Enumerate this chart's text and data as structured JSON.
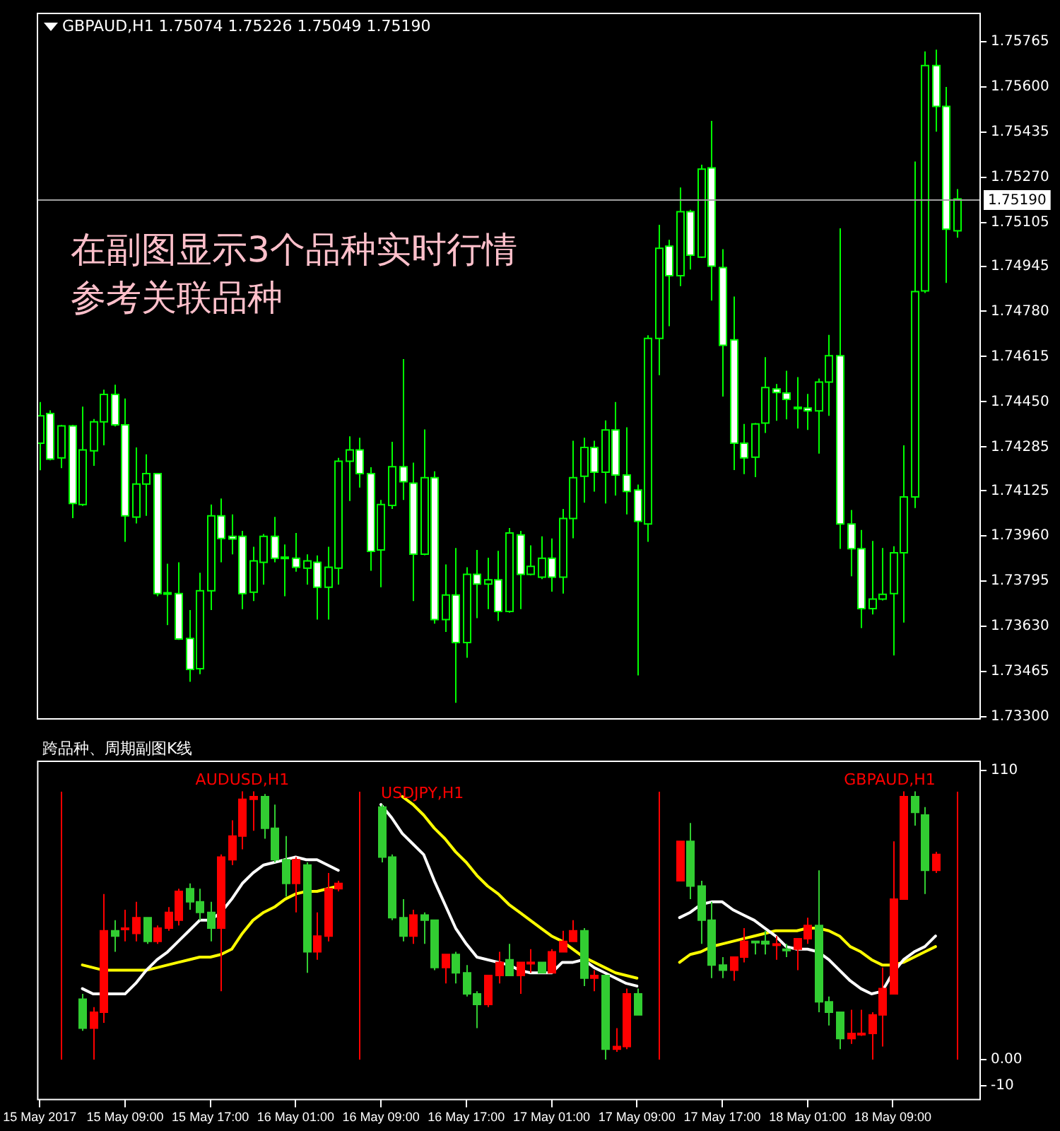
{
  "chart_data": [
    {
      "type": "candlestick",
      "title": "GBPAUD,H1  1.75074 1.75226 1.75049 1.75190",
      "annotations": [
        "在副图显示3个品种实时行情",
        "参考关联品种"
      ],
      "x": [
        "2017-05-15T01:00",
        "2017-05-15T02:00",
        "2017-05-15T03:00",
        "2017-05-15T04:00",
        "2017-05-15T05:00",
        "2017-05-15T06:00",
        "2017-05-15T07:00",
        "2017-05-15T08:00",
        "2017-05-15T09:00",
        "2017-05-15T10:00",
        "2017-05-15T11:00",
        "2017-05-15T12:00",
        "2017-05-15T13:00",
        "2017-05-15T14:00",
        "2017-05-15T15:00",
        "2017-05-15T16:00",
        "2017-05-15T17:00",
        "2017-05-15T18:00",
        "2017-05-15T19:00",
        "2017-05-15T20:00",
        "2017-05-15T21:00",
        "2017-05-15T22:00",
        "2017-05-15T23:00",
        "2017-05-16T00:00",
        "2017-05-16T01:00",
        "2017-05-16T02:00",
        "2017-05-16T03:00",
        "2017-05-16T04:00",
        "2017-05-16T05:00",
        "2017-05-16T06:00",
        "2017-05-16T07:00",
        "2017-05-16T08:00",
        "2017-05-16T09:00",
        "2017-05-16T10:00",
        "2017-05-16T11:00",
        "2017-05-16T12:00",
        "2017-05-16T13:00",
        "2017-05-16T14:00",
        "2017-05-16T15:00",
        "2017-05-16T16:00",
        "2017-05-16T17:00",
        "2017-05-16T18:00",
        "2017-05-16T19:00",
        "2017-05-16T20:00",
        "2017-05-16T21:00",
        "2017-05-16T22:00",
        "2017-05-16T23:00",
        "2017-05-17T00:00",
        "2017-05-17T01:00",
        "2017-05-17T02:00",
        "2017-05-17T03:00",
        "2017-05-17T04:00",
        "2017-05-17T05:00",
        "2017-05-17T06:00",
        "2017-05-17T07:00",
        "2017-05-17T08:00",
        "2017-05-17T09:00",
        "2017-05-17T10:00",
        "2017-05-17T11:00",
        "2017-05-17T12:00",
        "2017-05-17T13:00",
        "2017-05-17T14:00",
        "2017-05-17T15:00",
        "2017-05-17T16:00",
        "2017-05-17T17:00",
        "2017-05-17T18:00",
        "2017-05-17T19:00",
        "2017-05-17T20:00",
        "2017-05-17T21:00",
        "2017-05-17T22:00",
        "2017-05-17T23:00",
        "2017-05-18T00:00",
        "2017-05-18T01:00",
        "2017-05-18T02:00",
        "2017-05-18T03:00",
        "2017-05-18T04:00",
        "2017-05-18T05:00",
        "2017-05-18T06:00",
        "2017-05-18T07:00",
        "2017-05-18T08:00",
        "2017-05-18T09:00",
        "2017-05-18T10:00",
        "2017-05-18T11:00",
        "2017-05-18T12:00",
        "2017-05-18T13:00",
        "2017-05-18T14:00",
        "2017-05-18T15:00"
      ],
      "ohlc": [
        [
          1.74299,
          1.74449,
          1.742,
          1.74399
        ],
        [
          1.74407,
          1.74419,
          1.74236,
          1.74241
        ],
        [
          1.74245,
          1.74366,
          1.74208,
          1.74362
        ],
        [
          1.74362,
          1.74366,
          1.74025,
          1.74079
        ],
        [
          1.74075,
          1.74432,
          1.7407,
          1.74274
        ],
        [
          1.74271,
          1.74387,
          1.74216,
          1.74377
        ],
        [
          1.74377,
          1.74494,
          1.74291,
          1.74477
        ],
        [
          1.74477,
          1.74512,
          1.7436,
          1.74366
        ],
        [
          1.74366,
          1.74462,
          1.73939,
          1.74034
        ],
        [
          1.74029,
          1.74283,
          1.74006,
          1.7415
        ],
        [
          1.7415,
          1.74258,
          1.74034,
          1.74188
        ],
        [
          1.74188,
          1.7419,
          1.7374,
          1.7375
        ],
        [
          1.73753,
          1.73859,
          1.73635,
          1.73753
        ],
        [
          1.7375,
          1.73864,
          1.73581,
          1.73584
        ],
        [
          1.73586,
          1.7369,
          1.73428,
          1.73473
        ],
        [
          1.73476,
          1.73826,
          1.73456,
          1.7376
        ],
        [
          1.7376,
          1.74075,
          1.7369,
          1.74034
        ],
        [
          1.74034,
          1.74097,
          1.73864,
          1.73951
        ],
        [
          1.73959,
          1.74039,
          1.73893,
          1.73949
        ],
        [
          1.73959,
          1.73979,
          1.73693,
          1.7375
        ],
        [
          1.73755,
          1.73921,
          1.73723,
          1.73869
        ],
        [
          1.73864,
          1.73967,
          1.73783,
          1.73959
        ],
        [
          1.73959,
          1.7403,
          1.73864,
          1.73879
        ],
        [
          1.73883,
          1.73929,
          1.7374,
          1.73883
        ],
        [
          1.73879,
          1.73971,
          1.7383,
          1.73846
        ],
        [
          1.73843,
          1.73893,
          1.73783,
          1.73869
        ],
        [
          1.73864,
          1.73889,
          1.73655,
          1.73773
        ],
        [
          1.73773,
          1.73921,
          1.73655,
          1.73846
        ],
        [
          1.73843,
          1.74245,
          1.73783,
          1.74233
        ],
        [
          1.74233,
          1.74324,
          1.74088,
          1.74274
        ],
        [
          1.74274,
          1.74319,
          1.74137,
          1.74188
        ],
        [
          1.74188,
          1.74211,
          1.73833,
          1.73904
        ],
        [
          1.73909,
          1.74092,
          1.73773,
          1.74075
        ],
        [
          1.74072,
          1.74304,
          1.74059,
          1.74213
        ],
        [
          1.74213,
          1.74606,
          1.74092,
          1.74158
        ],
        [
          1.74153,
          1.74228,
          1.73723,
          1.73894
        ],
        [
          1.73894,
          1.74349,
          1.7389,
          1.74173
        ],
        [
          1.74173,
          1.74196,
          1.7364,
          1.73655
        ],
        [
          1.73655,
          1.73856,
          1.7361,
          1.73745
        ],
        [
          1.73745,
          1.73916,
          1.73351,
          1.73571
        ],
        [
          1.73571,
          1.73846,
          1.73516,
          1.7382
        ],
        [
          1.7382,
          1.73909,
          1.7366,
          1.73785
        ],
        [
          1.73785,
          1.73881,
          1.73693,
          1.738
        ],
        [
          1.738,
          1.73906,
          1.7365,
          1.73685
        ],
        [
          1.73685,
          1.73989,
          1.7368,
          1.73971
        ],
        [
          1.73964,
          1.73979,
          1.73693,
          1.7382
        ],
        [
          1.7382,
          1.73926,
          1.73816,
          1.73849
        ],
        [
          1.7381,
          1.73959,
          1.73803,
          1.73879
        ],
        [
          1.73879,
          1.73951,
          1.73757,
          1.7381
        ],
        [
          1.7381,
          1.74059,
          1.7375,
          1.74024
        ],
        [
          1.74024,
          1.74308,
          1.73952,
          1.74173
        ],
        [
          1.74178,
          1.74319,
          1.74082,
          1.74283
        ],
        [
          1.74283,
          1.74308,
          1.74122,
          1.74193
        ],
        [
          1.74193,
          1.74382,
          1.74079,
          1.74347
        ],
        [
          1.74347,
          1.74449,
          1.74108,
          1.74183
        ],
        [
          1.74183,
          1.74357,
          1.74039,
          1.74123
        ],
        [
          1.74128,
          1.74148,
          1.73451,
          1.74014
        ],
        [
          1.74004,
          1.74693,
          1.73939,
          1.74681
        ],
        [
          1.74681,
          1.75096,
          1.74547,
          1.7501
        ],
        [
          1.75018,
          1.75041,
          1.74726,
          1.7491
        ],
        [
          1.7491,
          1.75232,
          1.74872,
          1.75144
        ],
        [
          1.75144,
          1.75151,
          1.74933,
          1.74985
        ],
        [
          1.74978,
          1.75315,
          1.74975,
          1.75299
        ],
        [
          1.75304,
          1.75475,
          1.74819,
          1.74945
        ],
        [
          1.7494,
          1.75007,
          1.74469,
          1.74656
        ],
        [
          1.74676,
          1.74834,
          1.74201,
          1.74299
        ],
        [
          1.74299,
          1.74369,
          1.74186,
          1.74245
        ],
        [
          1.74248,
          1.74372,
          1.74175,
          1.74369
        ],
        [
          1.74372,
          1.74613,
          1.74336,
          1.74502
        ],
        [
          1.74497,
          1.74515,
          1.74381,
          1.74484
        ],
        [
          1.74482,
          1.74563,
          1.74386,
          1.74459
        ],
        [
          1.7443,
          1.7454,
          1.74352,
          1.7443
        ],
        [
          1.74427,
          1.74479,
          1.74347,
          1.74417
        ],
        [
          1.74417,
          1.74535,
          1.74261,
          1.74522
        ],
        [
          1.74522,
          1.74694,
          1.74399,
          1.74618
        ],
        [
          1.74618,
          1.75083,
          1.73913,
          1.74004
        ],
        [
          1.74004,
          1.74055,
          1.73813,
          1.73914
        ],
        [
          1.73914,
          1.73982,
          1.73624,
          1.73695
        ],
        [
          1.73695,
          1.73942,
          1.73674,
          1.7373
        ],
        [
          1.7373,
          1.73916,
          1.73725,
          1.73747
        ],
        [
          1.7375,
          1.73923,
          1.73524,
          1.73899
        ],
        [
          1.73899,
          1.74291,
          1.73644,
          1.74103
        ],
        [
          1.74103,
          1.75327,
          1.74062,
          1.74852
        ],
        [
          1.74855,
          1.75729,
          1.74847,
          1.75677
        ],
        [
          1.75677,
          1.75735,
          1.75436,
          1.75528
        ],
        [
          1.75528,
          1.75599,
          1.74884,
          1.7508
        ],
        [
          1.75074,
          1.75226,
          1.75049,
          1.7519
        ]
      ],
      "color": "#00ff00",
      "colors": [
        "#000000",
        "#ffffff",
        "#000000",
        "#ffffff",
        "#000000",
        "#000000",
        "#000000",
        "#ffffff",
        "#ffffff",
        "#000000",
        "#000000",
        "#ffffff",
        "#ffffff",
        "#ffffff",
        "#ffffff",
        "#000000",
        "#000000",
        "#ffffff",
        "#ffffff",
        "#ffffff",
        "#000000",
        "#000000",
        "#ffffff",
        "#ffffff",
        "#ffffff",
        "#000000",
        "#ffffff",
        "#000000",
        "#000000",
        "#000000",
        "#ffffff",
        "#ffffff",
        "#000000",
        "#000000",
        "#ffffff",
        "#ffffff",
        "#000000",
        "#ffffff",
        "#000000",
        "#ffffff",
        "#000000",
        "#ffffff",
        "#000000",
        "#ffffff",
        "#000000",
        "#ffffff",
        "#000000",
        "#000000",
        "#ffffff",
        "#000000",
        "#000000",
        "#000000",
        "#ffffff",
        "#000000",
        "#ffffff",
        "#ffffff",
        "#ffffff",
        "#000000",
        "#000000",
        "#ffffff",
        "#000000",
        "#ffffff",
        "#000000",
        "#ffffff",
        "#ffffff",
        "#ffffff",
        "#ffffff",
        "#000000",
        "#000000",
        "#ffffff",
        "#ffffff",
        "#ffffff",
        "#ffffff",
        "#000000",
        "#000000",
        "#ffffff",
        "#ffffff",
        "#ffffff",
        "#000000",
        "#000000",
        "#000000",
        "#000000",
        "#000000",
        "#000000",
        "#ffffff",
        "#ffffff",
        "#000000"
      ],
      "xlim": [
        "2017-05-15T00:45",
        "2017-05-18T17:15"
      ],
      "ylim": [
        1.7329,
        1.7587
      ],
      "yticks": [
        1.75765,
        {
          "value": 1.756,
          "label": "1.75600"
        },
        1.75435,
        {
          "value": 1.7527,
          "label": "1.75270"
        },
        1.75105,
        1.74945,
        {
          "value": 1.7478,
          "label": "1.74780"
        },
        1.74615,
        {
          "value": 1.7445,
          "label": "1.74450"
        },
        1.74285,
        1.74125,
        {
          "value": 1.7396,
          "label": "1.73960"
        },
        1.73795,
        {
          "value": 1.7363,
          "label": "1.73630"
        },
        1.73465,
        {
          "value": 1.733,
          "label": "1.73300"
        }
      ],
      "ref_lines": [
        {
          "axis": "y",
          "value": 1.7519,
          "label": "1.75190",
          "color": "#a0a0a0"
        }
      ],
      "tick_labels": "y"
    },
    {
      "type": "candlestick",
      "title": "跨品种、周期副图K线",
      "series": [
        {
          "type": "candlestick",
          "name": "AUDUSD,H1",
          "color": "#ff0000",
          "x": [
            "2017-05-15T05:00",
            "2017-05-15T06:00",
            "2017-05-15T07:00",
            "2017-05-15T08:00",
            "2017-05-15T09:00",
            "2017-05-15T10:00",
            "2017-05-15T11:00",
            "2017-05-15T12:00",
            "2017-05-15T13:00",
            "2017-05-15T14:00",
            "2017-05-15T15:00",
            "2017-05-15T16:00",
            "2017-05-15T17:00",
            "2017-05-15T18:00",
            "2017-05-15T19:00",
            "2017-05-15T20:00",
            "2017-05-15T21:00",
            "2017-05-15T22:00",
            "2017-05-15T23:00",
            "2017-05-16T00:00",
            "2017-05-16T01:00",
            "2017-05-16T02:00",
            "2017-05-16T03:00",
            "2017-05-16T04:00",
            "2017-05-16T05:00"
          ],
          "ohlc": [
            [
              23,
              25,
              11,
              12
            ],
            [
              12,
              20,
              0,
              18
            ],
            [
              18,
              63,
              14,
              49
            ],
            [
              49,
              53,
              41,
              47
            ],
            [
              50,
              57,
              45,
              50
            ],
            [
              48,
              60,
              45,
              54
            ],
            [
              54,
              54,
              44,
              45
            ],
            [
              45,
              51,
              44,
              50
            ],
            [
              50,
              58,
              49,
              56
            ],
            [
              53,
              65,
              51,
              64
            ],
            [
              65,
              67,
              57,
              60
            ],
            [
              60,
              65,
              53,
              56
            ],
            [
              56,
              60,
              45,
              50
            ],
            [
              50,
              78,
              26,
              77
            ],
            [
              76,
              91,
              74,
              85
            ],
            [
              85,
              102,
              80,
              99
            ],
            [
              99,
              102,
              87,
              100
            ],
            [
              100,
              101,
              84,
              88
            ],
            [
              88,
              97,
              75,
              76
            ],
            [
              76,
              85,
              62,
              67
            ],
            [
              67,
              77,
              56,
              76
            ],
            [
              74,
              75,
              33,
              41
            ],
            [
              41,
              56,
              38,
              47
            ],
            [
              47,
              71,
              45,
              65
            ],
            [
              65,
              68,
              64,
              67
            ]
          ],
          "colors": [
            "#32cd32",
            "#ff0000",
            "#ff0000",
            "#32cd32",
            "#ff0000",
            "#ff0000",
            "#32cd32",
            "#ff0000",
            "#ff0000",
            "#ff0000",
            "#32cd32",
            "#32cd32",
            "#32cd32",
            "#ff0000",
            "#ff0000",
            "#ff0000",
            "#ff0000",
            "#32cd32",
            "#32cd32",
            "#32cd32",
            "#ff0000",
            "#32cd32",
            "#ff0000",
            "#ff0000",
            "#ff0000"
          ]
        },
        {
          "type": "line",
          "color": "#ffffff",
          "x": [
            "2017-05-15T05:00",
            "2017-05-15T06:00",
            "2017-05-15T07:00",
            "2017-05-15T08:00",
            "2017-05-15T09:00",
            "2017-05-15T10:00",
            "2017-05-15T11:00",
            "2017-05-15T12:00",
            "2017-05-15T13:00",
            "2017-05-15T14:00",
            "2017-05-15T15:00",
            "2017-05-15T16:00",
            "2017-05-15T17:00",
            "2017-05-15T18:00",
            "2017-05-15T19:00",
            "2017-05-15T20:00",
            "2017-05-15T21:00",
            "2017-05-15T22:00",
            "2017-05-15T23:00",
            "2017-05-16T00:00",
            "2017-05-16T01:00",
            "2017-05-16T02:00",
            "2017-05-16T03:00",
            "2017-05-16T04:00",
            "2017-05-16T05:00"
          ],
          "values": [
            27,
            25,
            25,
            25,
            25,
            29,
            34,
            38,
            41,
            45,
            49,
            53,
            53,
            56,
            61,
            67,
            71,
            74,
            75,
            76,
            77,
            76,
            76,
            74,
            72
          ]
        },
        {
          "type": "line",
          "color": "#ffff00",
          "x": [
            "2017-05-15T05:00",
            "2017-05-15T06:00",
            "2017-05-15T07:00",
            "2017-05-15T08:00",
            "2017-05-15T09:00",
            "2017-05-15T10:00",
            "2017-05-15T11:00",
            "2017-05-15T12:00",
            "2017-05-15T13:00",
            "2017-05-15T14:00",
            "2017-05-15T15:00",
            "2017-05-15T16:00",
            "2017-05-15T17:00",
            "2017-05-15T18:00",
            "2017-05-15T19:00",
            "2017-05-15T20:00",
            "2017-05-15T21:00",
            "2017-05-15T22:00",
            "2017-05-15T23:00",
            "2017-05-16T00:00",
            "2017-05-16T01:00",
            "2017-05-16T02:00",
            "2017-05-16T03:00",
            "2017-05-16T04:00",
            "2017-05-16T05:00"
          ],
          "values": [
            36,
            35,
            34,
            34,
            34,
            34,
            34,
            35,
            36,
            37,
            38,
            39,
            39,
            40,
            42,
            48,
            53,
            56,
            58,
            61,
            63,
            64,
            64,
            65,
            66
          ]
        },
        {
          "type": "candlestick",
          "name": "USDJPY,H1",
          "color": "#ff0000",
          "x": [
            "2017-05-16T09:00",
            "2017-05-16T10:00",
            "2017-05-16T11:00",
            "2017-05-16T12:00",
            "2017-05-16T13:00",
            "2017-05-16T14:00",
            "2017-05-16T15:00",
            "2017-05-16T16:00",
            "2017-05-16T17:00",
            "2017-05-16T18:00",
            "2017-05-16T19:00",
            "2017-05-16T20:00",
            "2017-05-16T21:00",
            "2017-05-16T22:00",
            "2017-05-16T23:00",
            "2017-05-17T00:00",
            "2017-05-17T01:00",
            "2017-05-17T02:00",
            "2017-05-17T03:00",
            "2017-05-17T04:00",
            "2017-05-17T05:00",
            "2017-05-17T06:00",
            "2017-05-17T07:00",
            "2017-05-17T08:00",
            "2017-05-17T09:00"
          ],
          "ohlc": [
            [
              96,
              97,
              75,
              77
            ],
            [
              77,
              78,
              53,
              54
            ],
            [
              54,
              61,
              45,
              47
            ],
            [
              47,
              57,
              44,
              55
            ],
            [
              55,
              56,
              44,
              53
            ],
            [
              53,
              53,
              34,
              35
            ],
            [
              35,
              40,
              29,
              40
            ],
            [
              40,
              41,
              29,
              33
            ],
            [
              33,
              36,
              24,
              25
            ],
            [
              25,
              26,
              12,
              21
            ],
            [
              21,
              32,
              20,
              32
            ],
            [
              32,
              41,
              29,
              37
            ],
            [
              38,
              44,
              32,
              32
            ],
            [
              32,
              37,
              25,
              37
            ],
            [
              37,
              42,
              33,
              37
            ],
            [
              37,
              37,
              33,
              33
            ],
            [
              33,
              42,
              33,
              41
            ],
            [
              41,
              49,
              41,
              45
            ],
            [
              45,
              53,
              45,
              49
            ],
            [
              49,
              50,
              28,
              31
            ],
            [
              31,
              34,
              26,
              32
            ],
            [
              32,
              32,
              0,
              4
            ],
            [
              4,
              12,
              3,
              5
            ],
            [
              5,
              27,
              4,
              25
            ],
            [
              25,
              27,
              17,
              17
            ]
          ],
          "colors": [
            "#32cd32",
            "#32cd32",
            "#32cd32",
            "#ff0000",
            "#32cd32",
            "#32cd32",
            "#ff0000",
            "#32cd32",
            "#32cd32",
            "#32cd32",
            "#ff0000",
            "#ff0000",
            "#32cd32",
            "#ff0000",
            "#ff0000",
            "#32cd32",
            "#ff0000",
            "#ff0000",
            "#ff0000",
            "#32cd32",
            "#ff0000",
            "#32cd32",
            "#ff0000",
            "#ff0000",
            "#32cd32"
          ]
        },
        {
          "type": "line",
          "color": "#ffffff",
          "x": [
            "2017-05-16T09:00",
            "2017-05-16T10:00",
            "2017-05-16T11:00",
            "2017-05-16T12:00",
            "2017-05-16T13:00",
            "2017-05-16T14:00",
            "2017-05-16T15:00",
            "2017-05-16T16:00",
            "2017-05-16T17:00",
            "2017-05-16T18:00",
            "2017-05-16T19:00",
            "2017-05-16T20:00",
            "2017-05-16T21:00",
            "2017-05-16T22:00",
            "2017-05-16T23:00",
            "2017-05-17T00:00",
            "2017-05-17T01:00",
            "2017-05-17T02:00",
            "2017-05-17T03:00",
            "2017-05-17T04:00",
            "2017-05-17T05:00",
            "2017-05-17T06:00",
            "2017-05-17T07:00",
            "2017-05-17T08:00",
            "2017-05-17T09:00"
          ],
          "values": [
            97,
            92,
            86,
            82,
            78,
            68,
            59,
            50,
            44,
            39,
            38,
            37,
            36,
            34,
            33,
            33,
            33,
            37,
            37,
            38,
            35,
            33,
            31,
            29,
            28
          ]
        },
        {
          "type": "line",
          "color": "#ffff00",
          "x": [
            "2017-05-16T11:00",
            "2017-05-16T12:00",
            "2017-05-16T13:00",
            "2017-05-16T14:00",
            "2017-05-16T15:00",
            "2017-05-16T16:00",
            "2017-05-16T17:00",
            "2017-05-16T18:00",
            "2017-05-16T19:00",
            "2017-05-16T20:00",
            "2017-05-16T21:00",
            "2017-05-16T22:00",
            "2017-05-16T23:00",
            "2017-05-17T00:00",
            "2017-05-17T01:00",
            "2017-05-17T02:00",
            "2017-05-17T03:00",
            "2017-05-17T04:00",
            "2017-05-17T05:00",
            "2017-05-17T06:00",
            "2017-05-17T07:00",
            "2017-05-17T08:00",
            "2017-05-17T09:00"
          ],
          "values": [
            100,
            97,
            93,
            88,
            84,
            79,
            75,
            70,
            66,
            63,
            59,
            56,
            53,
            50,
            47,
            45,
            42,
            39,
            37,
            35,
            33,
            32,
            31
          ]
        },
        {
          "type": "candlestick",
          "name": "GBPAUD,H1",
          "color": "#ff0000",
          "x": [
            "2017-05-17T13:00",
            "2017-05-17T14:00",
            "2017-05-17T15:00",
            "2017-05-17T16:00",
            "2017-05-17T17:00",
            "2017-05-17T18:00",
            "2017-05-17T19:00",
            "2017-05-17T20:00",
            "2017-05-17T21:00",
            "2017-05-17T22:00",
            "2017-05-17T23:00",
            "2017-05-18T00:00",
            "2017-05-18T01:00",
            "2017-05-18T02:00",
            "2017-05-18T03:00",
            "2017-05-18T04:00",
            "2017-05-18T05:00",
            "2017-05-18T06:00",
            "2017-05-18T07:00",
            "2017-05-18T08:00",
            "2017-05-18T09:00",
            "2017-05-18T10:00",
            "2017-05-18T11:00",
            "2017-05-18T12:00",
            "2017-05-18T13:00"
          ],
          "ohlc": [
            [
              68,
              83,
              68,
              83
            ],
            [
              83,
              90,
              61,
              66
            ],
            [
              66,
              68,
              44,
              53
            ],
            [
              53,
              60,
              31,
              36
            ],
            [
              36,
              39,
              31,
              34
            ],
            [
              34,
              39,
              30,
              39
            ],
            [
              39,
              50,
              37,
              45
            ],
            [
              45,
              45,
              40,
              45
            ],
            [
              45,
              49,
              40,
              44
            ],
            [
              44,
              47,
              38,
              44
            ],
            [
              42,
              44,
              39,
              42
            ],
            [
              42,
              46,
              34,
              46
            ],
            [
              46,
              54,
              44,
              51
            ],
            [
              51,
              72,
              18,
              22
            ],
            [
              22,
              24,
              13,
              18
            ],
            [
              18,
              18,
              4,
              8
            ],
            [
              8,
              19,
              6,
              10
            ],
            [
              10,
              19,
              9,
              10
            ],
            [
              10,
              18,
              0,
              17
            ],
            [
              17,
              35,
              5,
              27
            ],
            [
              25,
              83,
              25,
              61
            ],
            [
              61,
              102,
              61,
              100
            ],
            [
              100,
              102,
              89,
              94
            ],
            [
              93,
              96,
              63,
              72
            ],
            [
              72,
              79,
              71,
              78
            ]
          ],
          "colors": [
            "#ff0000",
            "#32cd32",
            "#32cd32",
            "#32cd32",
            "#32cd32",
            "#ff0000",
            "#ff0000",
            "#32cd32",
            "#32cd32",
            "#ff0000",
            "#32cd32",
            "#ff0000",
            "#ff0000",
            "#32cd32",
            "#32cd32",
            "#32cd32",
            "#ff0000",
            "#ff0000",
            "#ff0000",
            "#ff0000",
            "#ff0000",
            "#ff0000",
            "#32cd32",
            "#32cd32",
            "#ff0000"
          ]
        },
        {
          "type": "line",
          "color": "#ffffff",
          "x": [
            "2017-05-17T13:00",
            "2017-05-17T14:00",
            "2017-05-17T15:00",
            "2017-05-17T16:00",
            "2017-05-17T17:00",
            "2017-05-17T18:00",
            "2017-05-17T19:00",
            "2017-05-17T20:00",
            "2017-05-17T21:00",
            "2017-05-17T22:00",
            "2017-05-17T23:00",
            "2017-05-18T00:00",
            "2017-05-18T01:00",
            "2017-05-18T02:00",
            "2017-05-18T03:00",
            "2017-05-18T04:00",
            "2017-05-18T05:00",
            "2017-05-18T06:00",
            "2017-05-18T07:00",
            "2017-05-18T08:00",
            "2017-05-18T09:00",
            "2017-05-18T10:00",
            "2017-05-18T11:00",
            "2017-05-18T12:00",
            "2017-05-18T13:00"
          ],
          "values": [
            54,
            56,
            59,
            60,
            60,
            57,
            55,
            53,
            50,
            47,
            43,
            42,
            42,
            41,
            38,
            34,
            30,
            27,
            25,
            26,
            33,
            38,
            41,
            43,
            47
          ]
        },
        {
          "type": "line",
          "color": "#ffff00",
          "x": [
            "2017-05-17T13:00",
            "2017-05-17T14:00",
            "2017-05-17T15:00",
            "2017-05-17T16:00",
            "2017-05-17T17:00",
            "2017-05-17T18:00",
            "2017-05-17T19:00",
            "2017-05-17T20:00",
            "2017-05-17T21:00",
            "2017-05-17T22:00",
            "2017-05-17T23:00",
            "2017-05-18T00:00",
            "2017-05-18T01:00",
            "2017-05-18T02:00",
            "2017-05-18T03:00",
            "2017-05-18T04:00",
            "2017-05-18T05:00",
            "2017-05-18T06:00",
            "2017-05-18T07:00",
            "2017-05-18T08:00",
            "2017-05-18T09:00",
            "2017-05-18T10:00",
            "2017-05-18T11:00",
            "2017-05-18T12:00",
            "2017-05-18T13:00"
          ],
          "values": [
            37,
            40,
            41,
            43,
            44,
            45,
            46,
            47,
            48,
            49,
            49,
            49,
            50,
            50,
            49,
            47,
            43,
            41,
            38,
            36,
            36,
            37,
            39,
            41,
            43
          ]
        }
      ],
      "xlim": [
        "2017-05-15T00:45",
        "2017-05-18T17:15"
      ],
      "xticks": [
        {
          "value": "2017-05-15T01:00",
          "label": "15 May 2017"
        },
        {
          "value": "2017-05-15T09:00",
          "label": "15 May 09:00"
        },
        {
          "value": "2017-05-15T17:00",
          "label": "15 May 17:00"
        },
        {
          "value": "2017-05-16T01:00",
          "label": "16 May 01:00"
        },
        {
          "value": "2017-05-16T09:00",
          "label": "16 May 09:00"
        },
        {
          "value": "2017-05-16T17:00",
          "label": "16 May 17:00"
        },
        {
          "value": "2017-05-17T01:00",
          "label": "17 May 01:00"
        },
        {
          "value": "2017-05-17T09:00",
          "label": "17 May 09:00"
        },
        {
          "value": "2017-05-17T17:00",
          "label": "17 May 17:00"
        },
        {
          "value": "2017-05-18T01:00",
          "label": "18 May 01:00"
        },
        {
          "value": "2017-05-18T09:00",
          "label": "18 May 09:00"
        }
      ],
      "ylim": [
        -15.4,
        113.7
      ],
      "yticks": [
        110,
        {
          "value": 0,
          "label": "0.00"
        },
        -10
      ],
      "ref_lines": [
        {
          "axis": "x",
          "value": "2017-05-15T03:00",
          "color": "#ff0000"
        },
        {
          "axis": "x",
          "value": "2017-05-16T07:00",
          "color": "#ff0000"
        },
        {
          "axis": "x",
          "value": "2017-05-17T11:00",
          "color": "#ff0000"
        },
        {
          "axis": "x",
          "value": "2017-05-18T15:00",
          "color": "#ff0000"
        }
      ]
    }
  ]
}
